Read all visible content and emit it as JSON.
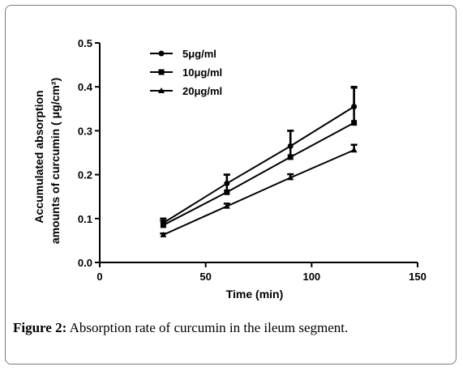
{
  "chart_data": {
    "type": "line",
    "xlabel": "Time (min)",
    "ylabel_line1": "Accumulated absorption",
    "ylabel_line2": "amounts of curcumin ( μg/cm²)",
    "xlim": [
      0,
      150
    ],
    "ylim": [
      0.0,
      0.5
    ],
    "x_ticks": [
      "0",
      "50",
      "100",
      "150"
    ],
    "y_ticks": [
      "0.0",
      "0.1",
      "0.2",
      "0.3",
      "0.4",
      "0.5"
    ],
    "x": [
      30,
      60,
      90,
      120
    ],
    "grid": false,
    "legend_position": "top-left",
    "series": [
      {
        "name": "5μg/ml",
        "marker": "circle",
        "values": [
          0.09,
          0.18,
          0.265,
          0.355
        ],
        "errors": [
          0.01,
          0.02,
          0.035,
          0.045
        ]
      },
      {
        "name": "10μg/ml",
        "marker": "square",
        "values": [
          0.085,
          0.16,
          0.24,
          0.318
        ],
        "errors": [
          0.01,
          0.04,
          0.06,
          0.08
        ]
      },
      {
        "name": "20μg/ml",
        "marker": "triangle",
        "values": [
          0.063,
          0.128,
          0.193,
          0.256
        ],
        "errors": [
          0.003,
          0.006,
          0.008,
          0.012
        ]
      }
    ]
  },
  "caption": {
    "label": "Figure 2:",
    "text": " Absorption rate of curcumin in the ileum segment."
  }
}
